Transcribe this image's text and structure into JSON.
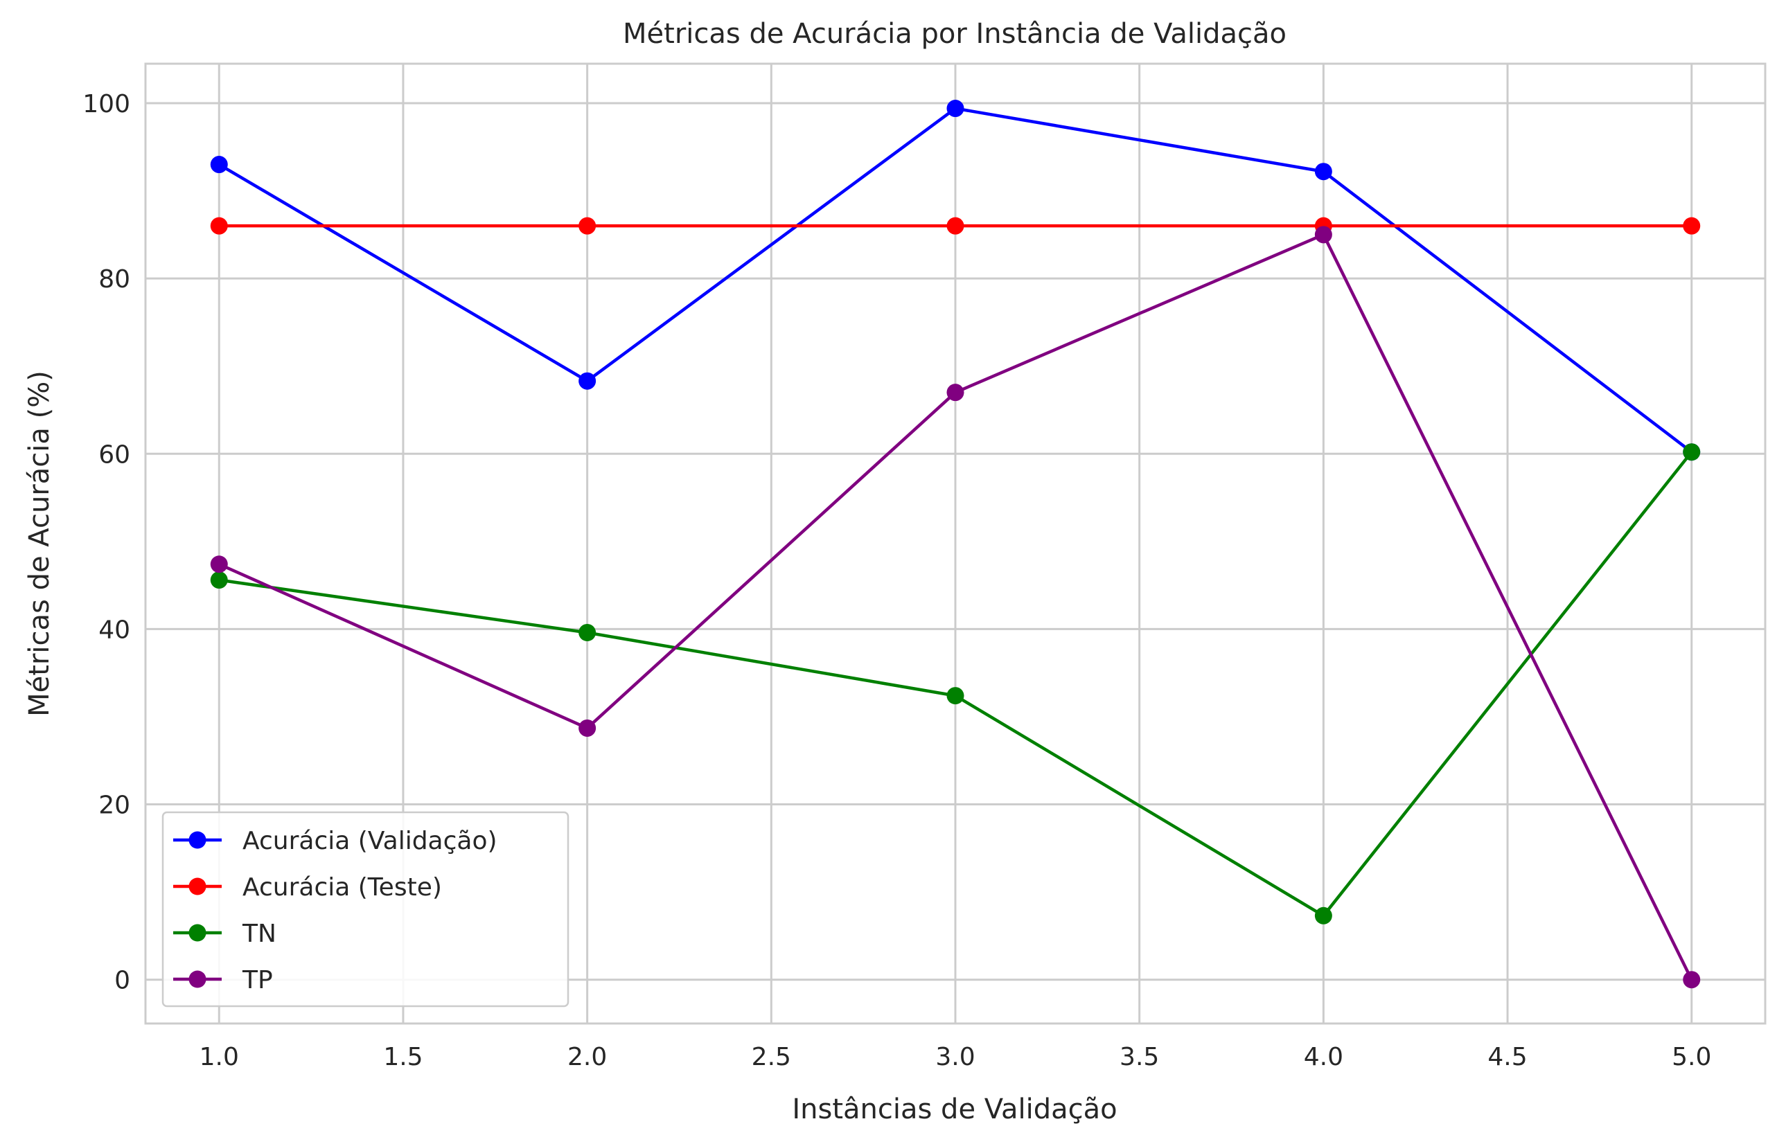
{
  "chart_data": {
    "type": "line",
    "title": "Métricas de Acurácia por Instância de Validação",
    "xlabel": "Instâncias de Validação",
    "ylabel": "Métricas de Acurácia (%)",
    "x": [
      1.0,
      2.0,
      3.0,
      4.0,
      5.0
    ],
    "xlim": [
      0.8,
      5.2
    ],
    "ylim": [
      -5,
      104.5
    ],
    "xticks": [
      "1.0",
      "1.5",
      "2.0",
      "2.5",
      "3.0",
      "3.5",
      "4.0",
      "4.5",
      "5.0"
    ],
    "yticks": [
      "0",
      "20",
      "40",
      "60",
      "80",
      "100"
    ],
    "grid": true,
    "legend_position": "bottom-left",
    "series": [
      {
        "name": "Acurácia (Validação)",
        "color": "#0000ff",
        "values": [
          93.0,
          68.3,
          99.4,
          92.2,
          60.2
        ]
      },
      {
        "name": "Acurácia (Teste)",
        "color": "#ff0000",
        "values": [
          86.0,
          86.0,
          86.0,
          86.0,
          86.0
        ]
      },
      {
        "name": "TN",
        "color": "#008000",
        "values": [
          45.6,
          39.6,
          32.4,
          7.3,
          60.2
        ]
      },
      {
        "name": "TP",
        "color": "#800080",
        "values": [
          47.4,
          28.7,
          67.0,
          85.0,
          0.0
        ]
      }
    ]
  }
}
